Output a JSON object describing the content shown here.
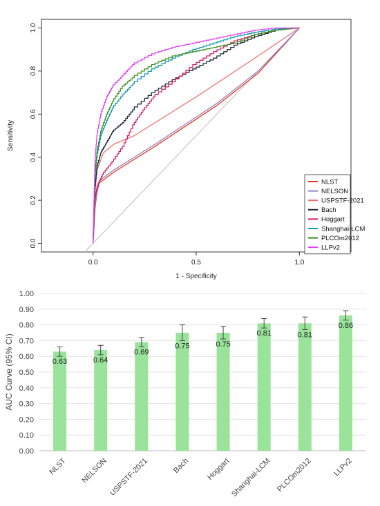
{
  "chart_data": [
    {
      "type": "line",
      "xlabel": "1 - Specificity",
      "ylabel": "Sensitivity",
      "xlim": [
        -0.25,
        1.25
      ],
      "ylim": [
        -0.04,
        1.04
      ],
      "x_ticks": [
        0.0,
        0.5,
        1.0
      ],
      "x_tick_labels": [
        "0.0",
        "0.5",
        "1.0"
      ],
      "y_ticks": [
        0.0,
        0.2,
        0.4,
        0.6,
        0.8,
        1.0
      ],
      "y_tick_labels": [
        "0.0",
        "0.2",
        "0.4",
        "0.6",
        "0.8",
        "1.0"
      ],
      "diagonal_reference": true,
      "legend_position": "bottom-right",
      "series": [
        {
          "name": "NLST",
          "color": "#e8331c",
          "style": "line",
          "points": [
            [
              0,
              0
            ],
            [
              0.01,
              0.17
            ],
            [
              0.02,
              0.24
            ],
            [
              0.03,
              0.28
            ],
            [
              0.1,
              0.33
            ],
            [
              0.3,
              0.45
            ],
            [
              0.6,
              0.64
            ],
            [
              0.8,
              0.79
            ],
            [
              1,
              1
            ]
          ]
        },
        {
          "name": "NELSON",
          "color": "#8b84c9",
          "style": "line",
          "points": [
            [
              0,
              0
            ],
            [
              0.01,
              0.18
            ],
            [
              0.02,
              0.25
            ],
            [
              0.03,
              0.29
            ],
            [
              0.1,
              0.34
            ],
            [
              0.3,
              0.46
            ],
            [
              0.6,
              0.65
            ],
            [
              0.8,
              0.8
            ],
            [
              1,
              1
            ]
          ]
        },
        {
          "name": "USPSTF-2021",
          "color": "#f07070",
          "style": "line",
          "points": [
            [
              0,
              0
            ],
            [
              0.01,
              0.25
            ],
            [
              0.02,
              0.34
            ],
            [
              0.05,
              0.42
            ],
            [
              0.1,
              0.46
            ],
            [
              0.2,
              0.5
            ],
            [
              0.5,
              0.68
            ],
            [
              0.8,
              0.87
            ],
            [
              1,
              1
            ]
          ]
        },
        {
          "name": "Bach",
          "color": "#1b2838",
          "style": "step",
          "points": [
            [
              0,
              0
            ],
            [
              0.005,
              0.12
            ],
            [
              0.01,
              0.25
            ],
            [
              0.02,
              0.35
            ],
            [
              0.04,
              0.42
            ],
            [
              0.07,
              0.47
            ],
            [
              0.1,
              0.52
            ],
            [
              0.15,
              0.56
            ],
            [
              0.2,
              0.62
            ],
            [
              0.3,
              0.7
            ],
            [
              0.4,
              0.76
            ],
            [
              0.5,
              0.81
            ],
            [
              0.6,
              0.86
            ],
            [
              0.7,
              0.92
            ],
            [
              0.8,
              0.96
            ],
            [
              0.9,
              0.99
            ],
            [
              1,
              1
            ]
          ]
        },
        {
          "name": "Hoggart",
          "color": "#d81b60",
          "style": "step",
          "points": [
            [
              0,
              0
            ],
            [
              0.005,
              0.1
            ],
            [
              0.01,
              0.2
            ],
            [
              0.02,
              0.26
            ],
            [
              0.05,
              0.32
            ],
            [
              0.1,
              0.38
            ],
            [
              0.15,
              0.45
            ],
            [
              0.2,
              0.55
            ],
            [
              0.25,
              0.62
            ],
            [
              0.3,
              0.68
            ],
            [
              0.4,
              0.75
            ],
            [
              0.5,
              0.83
            ],
            [
              0.6,
              0.89
            ],
            [
              0.7,
              0.94
            ],
            [
              0.8,
              0.97
            ],
            [
              0.9,
              0.99
            ],
            [
              1,
              1
            ]
          ]
        },
        {
          "name": "Shanghai-LCM",
          "color": "#0e9ab1",
          "style": "step",
          "points": [
            [
              0,
              0
            ],
            [
              0.005,
              0.15
            ],
            [
              0.01,
              0.3
            ],
            [
              0.02,
              0.4
            ],
            [
              0.04,
              0.5
            ],
            [
              0.07,
              0.57
            ],
            [
              0.1,
              0.63
            ],
            [
              0.15,
              0.69
            ],
            [
              0.2,
              0.74
            ],
            [
              0.3,
              0.81
            ],
            [
              0.4,
              0.86
            ],
            [
              0.5,
              0.9
            ],
            [
              0.6,
              0.93
            ],
            [
              0.7,
              0.96
            ],
            [
              0.8,
              0.98
            ],
            [
              0.9,
              0.995
            ],
            [
              1,
              1
            ]
          ]
        },
        {
          "name": "PLCOm2012",
          "color": "#3f8f1f",
          "style": "step",
          "points": [
            [
              0,
              0
            ],
            [
              0.005,
              0.15
            ],
            [
              0.01,
              0.32
            ],
            [
              0.02,
              0.42
            ],
            [
              0.04,
              0.52
            ],
            [
              0.07,
              0.6
            ],
            [
              0.1,
              0.66
            ],
            [
              0.15,
              0.73
            ],
            [
              0.2,
              0.77
            ],
            [
              0.3,
              0.83
            ],
            [
              0.4,
              0.87
            ],
            [
              0.5,
              0.89
            ],
            [
              0.6,
              0.91
            ],
            [
              0.7,
              0.93
            ],
            [
              0.8,
              0.97
            ],
            [
              0.9,
              0.99
            ],
            [
              1,
              1
            ]
          ]
        },
        {
          "name": "LLPv2",
          "color": "#e040fb",
          "style": "step",
          "points": [
            [
              0,
              0
            ],
            [
              0.005,
              0.2
            ],
            [
              0.01,
              0.38
            ],
            [
              0.02,
              0.5
            ],
            [
              0.04,
              0.6
            ],
            [
              0.07,
              0.68
            ],
            [
              0.1,
              0.73
            ],
            [
              0.15,
              0.78
            ],
            [
              0.2,
              0.83
            ],
            [
              0.3,
              0.88
            ],
            [
              0.4,
              0.91
            ],
            [
              0.5,
              0.93
            ],
            [
              0.6,
              0.95
            ],
            [
              0.7,
              0.97
            ],
            [
              0.8,
              0.99
            ],
            [
              0.9,
              1.0
            ],
            [
              1,
              1
            ]
          ]
        }
      ]
    },
    {
      "type": "bar",
      "ylabel": "AUC Curve (95% CI)",
      "ylim": [
        0,
        1
      ],
      "y_ticks": [
        0.0,
        0.1,
        0.2,
        0.3,
        0.4,
        0.5,
        0.6,
        0.7,
        0.8,
        0.9,
        1.0
      ],
      "y_tick_labels": [
        "0.00",
        "0.10",
        "0.20",
        "0.30",
        "0.40",
        "0.50",
        "0.60",
        "0.70",
        "0.80",
        "0.90",
        "1.00"
      ],
      "grid": true,
      "categories": [
        "NLST",
        "NELSON",
        "USPSTF-2021",
        "Bach",
        "Hoggart",
        "Shanghai-LCM",
        "PLCOm2012",
        "LLPv2"
      ],
      "values": [
        0.63,
        0.64,
        0.69,
        0.75,
        0.75,
        0.81,
        0.81,
        0.86
      ],
      "value_labels": [
        "0.63",
        "0.64",
        "0.69",
        "0.75",
        "0.75",
        "0.81",
        "0.81",
        "0.86"
      ],
      "ci_lower": [
        0.6,
        0.61,
        0.66,
        0.7,
        0.71,
        0.78,
        0.77,
        0.83
      ],
      "ci_upper": [
        0.66,
        0.67,
        0.72,
        0.8,
        0.79,
        0.84,
        0.85,
        0.89
      ],
      "bar_color": "#99e39a",
      "error_bar_color": "#444444"
    }
  ]
}
